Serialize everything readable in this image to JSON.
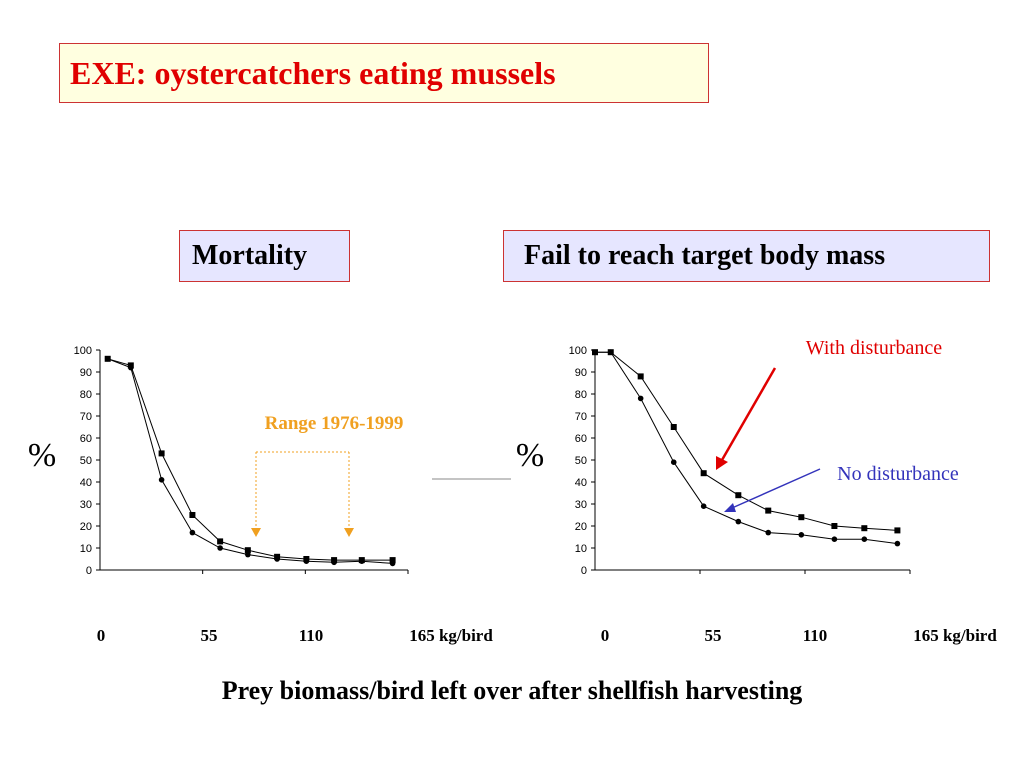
{
  "slide": {
    "title": "EXE: oystercatchers eating mussels",
    "xlabel": "Prey biomass/bird left over after shellfish harvesting",
    "colors": {
      "box_border": "#cc3333",
      "title_text": "#e00000",
      "title_bg": "#ffffe0",
      "section_bg": "#e6e6ff"
    }
  },
  "chart_data": [
    {
      "type": "line",
      "title": "Mortality",
      "ylabel": "%",
      "xlabel": "kg/bird",
      "ylim": [
        0,
        100
      ],
      "yticks": [
        0,
        10,
        20,
        30,
        40,
        50,
        60,
        70,
        80,
        90,
        100
      ],
      "xticks": [
        "0",
        "55",
        "110",
        "165 kg/bird"
      ],
      "grid": false,
      "series": [
        {
          "marker": "square",
          "x": [
            5,
            20,
            40,
            60,
            78,
            96,
            115,
            134,
            152,
            170,
            190
          ],
          "values": [
            96,
            93,
            53,
            25,
            13,
            9,
            6,
            5,
            4.5,
            4.5,
            4.5
          ]
        },
        {
          "marker": "circle",
          "x": [
            5,
            20,
            40,
            60,
            78,
            96,
            115,
            134,
            152,
            170,
            190
          ],
          "values": [
            96,
            92,
            41,
            17,
            10,
            7,
            5,
            4,
            3.5,
            4,
            3
          ]
        }
      ],
      "annotations": [
        {
          "text": "Range 1976-1999",
          "color": "#f0a020",
          "x_from": 98,
          "x_to": 164
        }
      ]
    },
    {
      "type": "line",
      "title": "Fail to reach target body mass",
      "ylabel": "%",
      "xlabel": "kg/bird",
      "ylim": [
        0,
        100
      ],
      "yticks": [
        0,
        10,
        20,
        30,
        40,
        50,
        60,
        70,
        80,
        90,
        100
      ],
      "xticks": [
        "0",
        "55",
        "110",
        "165 kg/bird"
      ],
      "grid": false,
      "series": [
        {
          "name": "With disturbance",
          "marker": "square",
          "color": "#000000",
          "x": [
            0,
            10,
            29,
            50,
            69,
            91,
            110,
            131,
            152,
            171,
            192
          ],
          "values": [
            99,
            99,
            88,
            65,
            44,
            34,
            27,
            24,
            20,
            19,
            18
          ]
        },
        {
          "name": "No disturbance",
          "marker": "circle",
          "color": "#000000",
          "x": [
            0,
            10,
            29,
            50,
            69,
            91,
            110,
            131,
            152,
            171,
            192
          ],
          "values": [
            99,
            99,
            78,
            49,
            29,
            22,
            17,
            16,
            14,
            14,
            12
          ]
        }
      ],
      "annotations": [
        {
          "text": "With disturbance",
          "color": "#e00000",
          "series": 0
        },
        {
          "text": "No disturbance",
          "color": "#3333bb",
          "series": 1
        }
      ]
    }
  ]
}
